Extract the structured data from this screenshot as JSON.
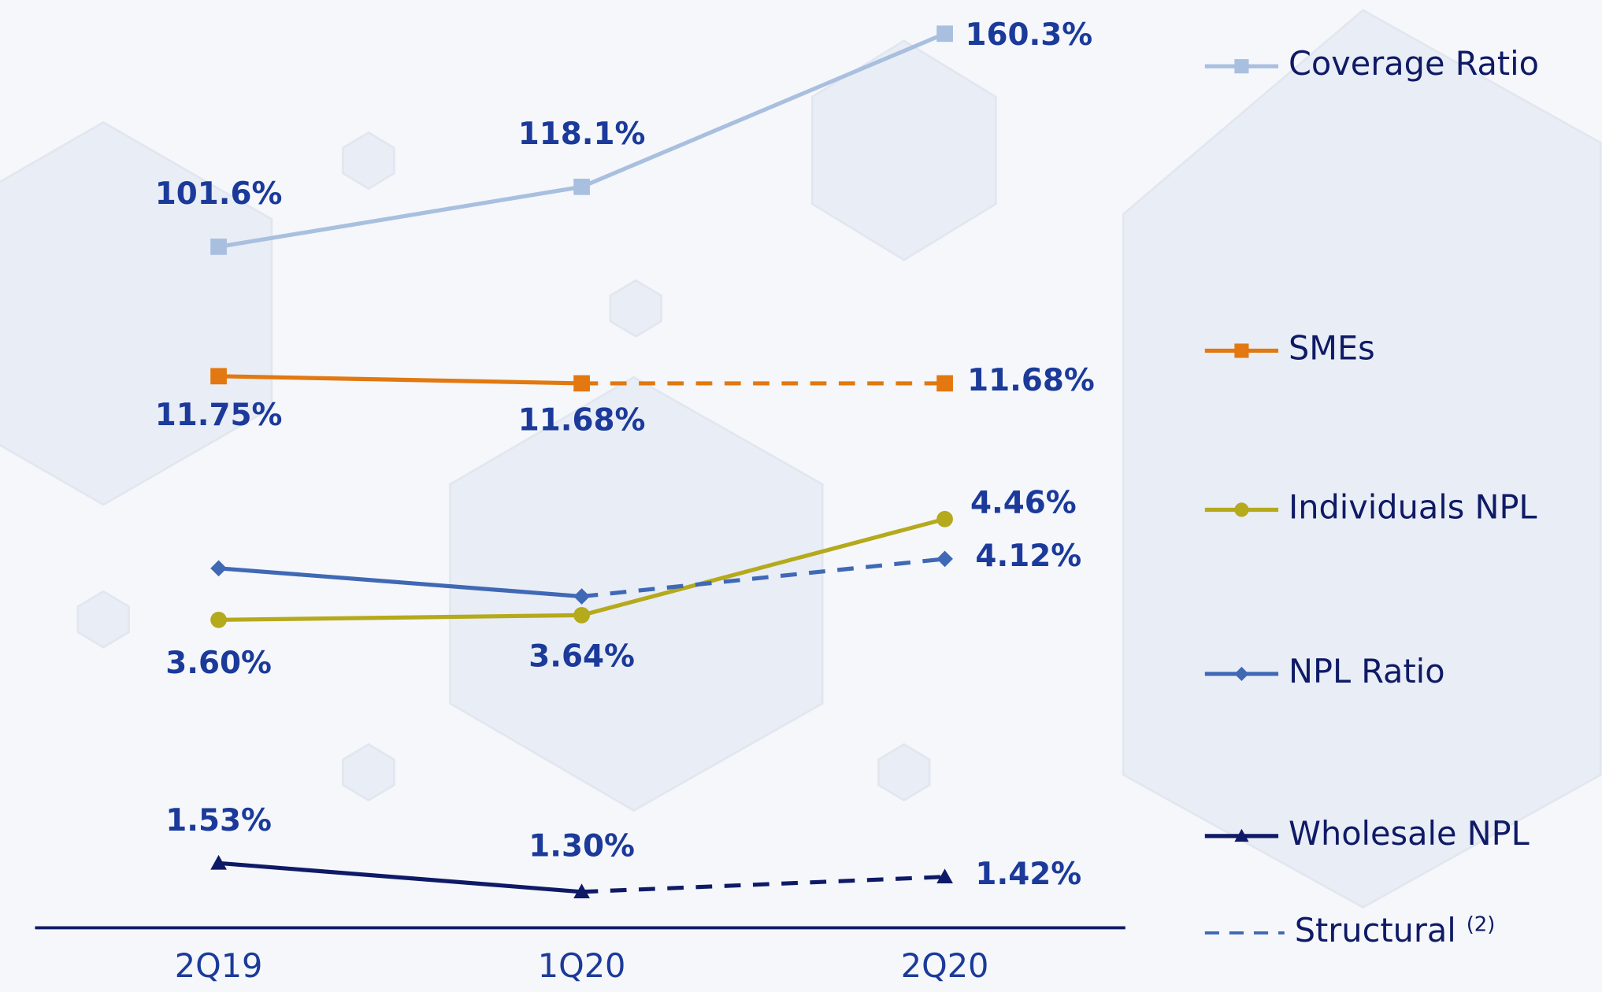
{
  "chart_data": {
    "type": "line",
    "categories": [
      "2Q19",
      "1Q20",
      "2Q20"
    ],
    "series": [
      {
        "name": "Coverage Ratio",
        "color": "#a9bfdf",
        "marker": "square",
        "values": [
          101.6,
          118.1,
          160.3
        ],
        "value_labels": [
          "101.6%",
          "118.1%",
          "160.3%"
        ],
        "ylim": [
          95,
          165
        ],
        "dashed_from": null
      },
      {
        "name": "SMEs",
        "color": "#e2780f",
        "marker": "square",
        "values": [
          11.75,
          11.68,
          11.68
        ],
        "value_labels": [
          "11.75%",
          "11.68%",
          "11.68%"
        ],
        "ylim": [
          11.5,
          12
        ],
        "dashed_from": 1
      },
      {
        "name": "Individuals NPL",
        "color": "#b5a91c",
        "marker": "circle",
        "values": [
          3.6,
          3.64,
          4.46
        ],
        "value_labels": [
          "3.60%",
          "3.64%",
          "4.46%"
        ],
        "ylim": [
          3.4,
          4.6
        ],
        "dashed_from": null
      },
      {
        "name": "NPL Ratio",
        "color": "#3f68b5",
        "marker": "diamond",
        "values": [
          4.04,
          3.8,
          4.12
        ],
        "value_labels": [
          null,
          null,
          "4.12%"
        ],
        "ylim": [
          3.4,
          4.6
        ],
        "dashed_from": 1
      },
      {
        "name": "Wholesale NPL",
        "color": "#0f1a66",
        "marker": "triangle",
        "values": [
          1.53,
          1.3,
          1.42
        ],
        "value_labels": [
          "1.53%",
          "1.30%",
          "1.42%"
        ],
        "ylim": [
          1.2,
          1.6
        ],
        "dashed_from": 1
      }
    ],
    "structural_legend": {
      "label": "Structural",
      "note": "(2)",
      "color": "#3f68b5"
    }
  }
}
